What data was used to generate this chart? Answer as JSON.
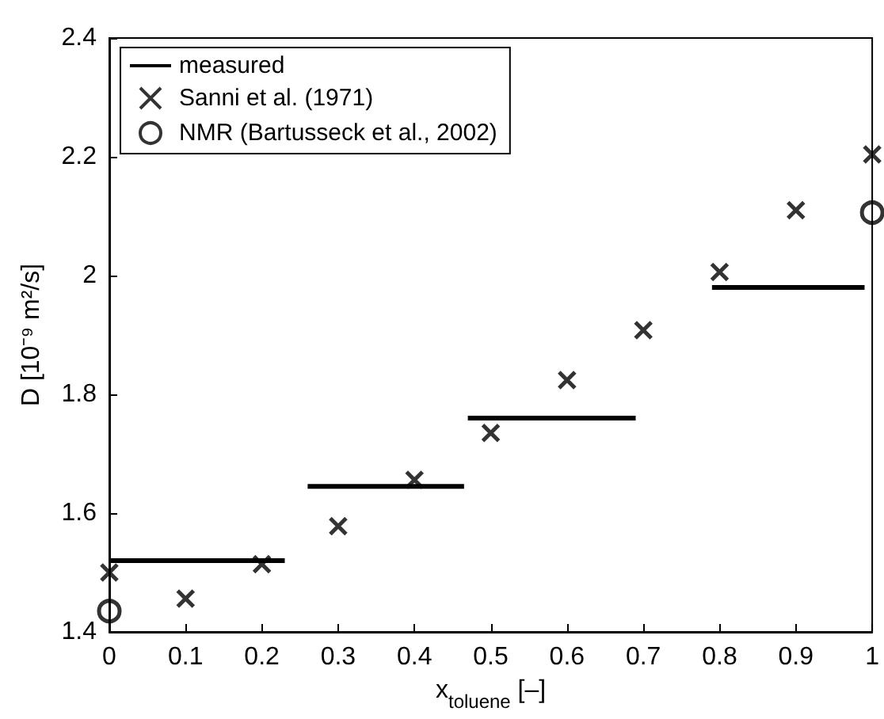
{
  "chart_data": {
    "type": "scatter",
    "xlabel": "x$_{toluene}$ [–]",
    "ylabel": "D [10⁻⁹ m²/s]",
    "xlim": [
      0,
      1
    ],
    "xticks": [
      0,
      0.1,
      0.2,
      0.3,
      0.4,
      0.5,
      0.6,
      0.7,
      0.8,
      0.9,
      1
    ],
    "ylim": [
      1.4,
      2.4
    ],
    "yticks": [
      1.4,
      1.6,
      1.8,
      2,
      2.2,
      2.4
    ],
    "grid": false,
    "legend": "top left",
    "series": [
      {
        "name": "measured",
        "type": "line",
        "marker": "none",
        "line_style": "solid",
        "color": "#000000",
        "x": [
          0,
          0.23,
          0.245,
          0.26,
          0.465,
          0.4675,
          0.47,
          0.69,
          0.74,
          0.79,
          0.99
        ],
        "values": [
          1.52,
          1.52,
          null,
          1.645,
          1.645,
          null,
          1.76,
          1.76,
          null,
          1.98,
          1.98
        ]
      },
      {
        "name": "Sanni et al. (1971)",
        "marker": "cross",
        "color": "#000000",
        "x": [
          0,
          0.1,
          0.2,
          0.3,
          0.4,
          0.5,
          0.6,
          0.7,
          0.8,
          0.9,
          1
        ],
        "values": [
          1.5,
          1.456,
          1.514,
          1.578,
          1.656,
          1.735,
          1.824,
          1.908,
          2.006,
          2.11,
          2.204
        ]
      },
      {
        "name": "NMR (Bartusseck et al., 2002)",
        "marker": "circle",
        "color": "#000000",
        "x": [
          0,
          1
        ],
        "values": [
          1.435,
          2.106
        ]
      }
    ]
  }
}
